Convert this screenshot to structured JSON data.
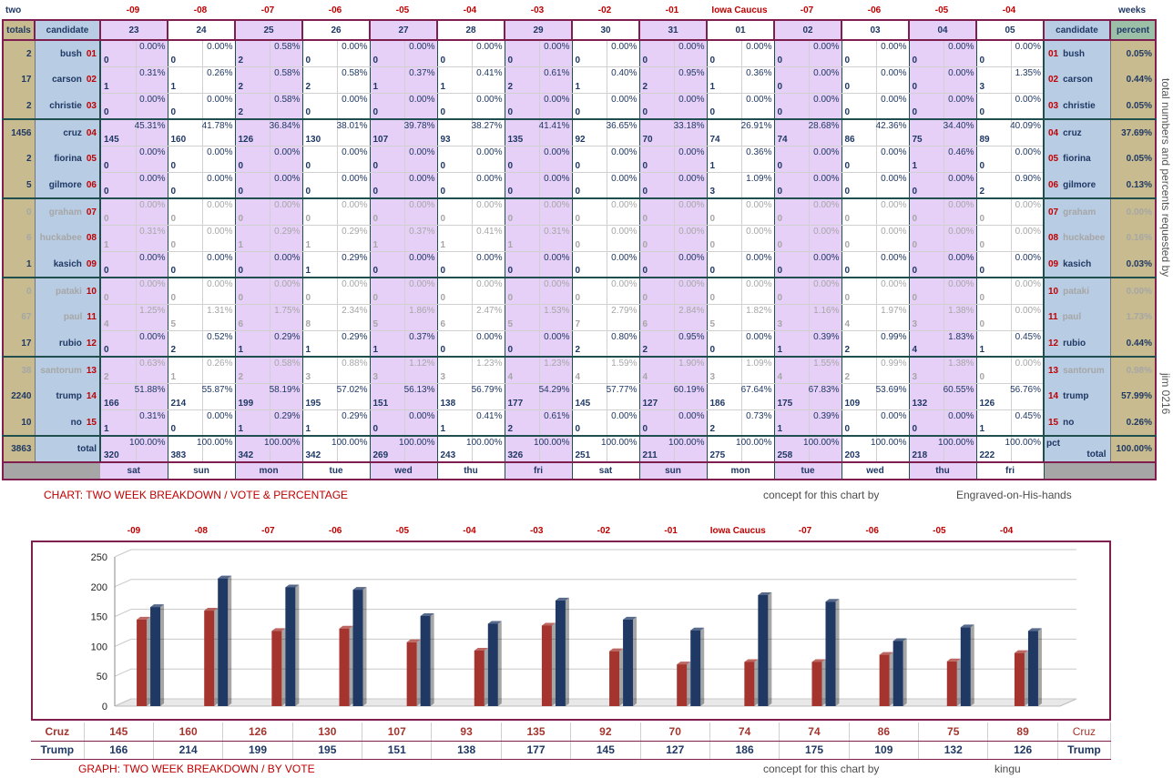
{
  "corner": {
    "left": "two",
    "right": "weeks"
  },
  "top_labels": [
    "-09",
    "-08",
    "-07",
    "-06",
    "-05",
    "-04",
    "-03",
    "-02",
    "-01",
    "Iowa Caucus",
    "-07",
    "-06",
    "-05",
    "-04"
  ],
  "header": {
    "totals": "totals",
    "candidate": "candidate",
    "percent": "percent"
  },
  "dates": [
    "23",
    "24",
    "25",
    "26",
    "27",
    "28",
    "29",
    "30",
    "31",
    "01",
    "02",
    "03",
    "04",
    "05"
  ],
  "weekdays": [
    "sat",
    "sun",
    "mon",
    "tue",
    "wed",
    "thu",
    "fri",
    "sat",
    "sun",
    "mon",
    "tue",
    "wed",
    "thu",
    "fri"
  ],
  "candidates": [
    {
      "id": "01",
      "name": "bush",
      "total": "2",
      "percent": "0.05%",
      "faded": false,
      "votes": [
        "0",
        "0",
        "2",
        "0",
        "0",
        "0",
        "0",
        "0",
        "0",
        "0",
        "0",
        "0",
        "0",
        "0"
      ],
      "pcts": [
        "0.00%",
        "0.00%",
        "0.58%",
        "0.00%",
        "0.00%",
        "0.00%",
        "0.00%",
        "0.00%",
        "0.00%",
        "0.00%",
        "0.00%",
        "0.00%",
        "0.00%",
        "0.00%"
      ]
    },
    {
      "id": "02",
      "name": "carson",
      "total": "17",
      "percent": "0.44%",
      "faded": false,
      "votes": [
        "1",
        "1",
        "2",
        "2",
        "1",
        "1",
        "2",
        "1",
        "2",
        "1",
        "0",
        "0",
        "0",
        "3"
      ],
      "pcts": [
        "0.31%",
        "0.26%",
        "0.58%",
        "0.58%",
        "0.37%",
        "0.41%",
        "0.61%",
        "0.40%",
        "0.95%",
        "0.36%",
        "0.00%",
        "0.00%",
        "0.00%",
        "1.35%"
      ]
    },
    {
      "id": "03",
      "name": "christie",
      "total": "2",
      "percent": "0.05%",
      "faded": false,
      "votes": [
        "0",
        "0",
        "2",
        "0",
        "0",
        "0",
        "0",
        "0",
        "0",
        "0",
        "0",
        "0",
        "0",
        "0"
      ],
      "pcts": [
        "0.00%",
        "0.00%",
        "0.58%",
        "0.00%",
        "0.00%",
        "0.00%",
        "0.00%",
        "0.00%",
        "0.00%",
        "0.00%",
        "0.00%",
        "0.00%",
        "0.00%",
        "0.00%"
      ]
    },
    {
      "id": "04",
      "name": "cruz",
      "total": "1456",
      "percent": "37.69%",
      "faded": false,
      "votes": [
        "145",
        "160",
        "126",
        "130",
        "107",
        "93",
        "135",
        "92",
        "70",
        "74",
        "74",
        "86",
        "75",
        "89"
      ],
      "pcts": [
        "45.31%",
        "41.78%",
        "36.84%",
        "38.01%",
        "39.78%",
        "38.27%",
        "41.41%",
        "36.65%",
        "33.18%",
        "26.91%",
        "28.68%",
        "42.36%",
        "34.40%",
        "40.09%"
      ]
    },
    {
      "id": "05",
      "name": "fiorina",
      "total": "2",
      "percent": "0.05%",
      "faded": false,
      "votes": [
        "0",
        "0",
        "0",
        "0",
        "0",
        "0",
        "0",
        "0",
        "0",
        "1",
        "0",
        "0",
        "1",
        "0"
      ],
      "pcts": [
        "0.00%",
        "0.00%",
        "0.00%",
        "0.00%",
        "0.00%",
        "0.00%",
        "0.00%",
        "0.00%",
        "0.00%",
        "0.36%",
        "0.00%",
        "0.00%",
        "0.46%",
        "0.00%"
      ]
    },
    {
      "id": "06",
      "name": "gilmore",
      "total": "5",
      "percent": "0.13%",
      "faded": false,
      "votes": [
        "0",
        "0",
        "0",
        "0",
        "0",
        "0",
        "0",
        "0",
        "0",
        "3",
        "0",
        "0",
        "0",
        "2"
      ],
      "pcts": [
        "0.00%",
        "0.00%",
        "0.00%",
        "0.00%",
        "0.00%",
        "0.00%",
        "0.00%",
        "0.00%",
        "0.00%",
        "1.09%",
        "0.00%",
        "0.00%",
        "0.00%",
        "0.90%"
      ]
    },
    {
      "id": "07",
      "name": "graham",
      "total": "0",
      "percent": "0.00%",
      "faded": true,
      "votes": [
        "0",
        "0",
        "0",
        "0",
        "0",
        "0",
        "0",
        "0",
        "0",
        "0",
        "0",
        "0",
        "0",
        "0"
      ],
      "pcts": [
        "0.00%",
        "0.00%",
        "0.00%",
        "0.00%",
        "0.00%",
        "0.00%",
        "0.00%",
        "0.00%",
        "0.00%",
        "0.00%",
        "0.00%",
        "0.00%",
        "0.00%",
        "0.00%"
      ]
    },
    {
      "id": "08",
      "name": "huckabee",
      "total": "6",
      "percent": "0.16%",
      "faded": true,
      "votes": [
        "1",
        "0",
        "1",
        "1",
        "1",
        "1",
        "1",
        "0",
        "0",
        "0",
        "0",
        "0",
        "0",
        "0"
      ],
      "pcts": [
        "0.31%",
        "0.00%",
        "0.29%",
        "0.29%",
        "0.37%",
        "0.41%",
        "0.31%",
        "0.00%",
        "0.00%",
        "0.00%",
        "0.00%",
        "0.00%",
        "0.00%",
        "0.00%"
      ]
    },
    {
      "id": "09",
      "name": "kasich",
      "total": "1",
      "percent": "0.03%",
      "faded": false,
      "votes": [
        "0",
        "0",
        "0",
        "1",
        "0",
        "0",
        "0",
        "0",
        "0",
        "0",
        "0",
        "0",
        "0",
        "0"
      ],
      "pcts": [
        "0.00%",
        "0.00%",
        "0.00%",
        "0.29%",
        "0.00%",
        "0.00%",
        "0.00%",
        "0.00%",
        "0.00%",
        "0.00%",
        "0.00%",
        "0.00%",
        "0.00%",
        "0.00%"
      ]
    },
    {
      "id": "10",
      "name": "pataki",
      "total": "0",
      "percent": "0.00%",
      "faded": true,
      "votes": [
        "0",
        "0",
        "0",
        "0",
        "0",
        "0",
        "0",
        "0",
        "0",
        "0",
        "0",
        "0",
        "0",
        "0"
      ],
      "pcts": [
        "0.00%",
        "0.00%",
        "0.00%",
        "0.00%",
        "0.00%",
        "0.00%",
        "0.00%",
        "0.00%",
        "0.00%",
        "0.00%",
        "0.00%",
        "0.00%",
        "0.00%",
        "0.00%"
      ]
    },
    {
      "id": "11",
      "name": "paul",
      "total": "67",
      "percent": "1.73%",
      "faded": true,
      "votes": [
        "4",
        "5",
        "6",
        "8",
        "5",
        "6",
        "5",
        "7",
        "6",
        "5",
        "3",
        "4",
        "3",
        "0"
      ],
      "pcts": [
        "1.25%",
        "1.31%",
        "1.75%",
        "2.34%",
        "1.86%",
        "2.47%",
        "1.53%",
        "2.79%",
        "2.84%",
        "1.82%",
        "1.16%",
        "1.97%",
        "1.38%",
        "0.00%"
      ]
    },
    {
      "id": "12",
      "name": "rubio",
      "total": "17",
      "percent": "0.44%",
      "faded": false,
      "votes": [
        "0",
        "2",
        "1",
        "1",
        "1",
        "0",
        "0",
        "2",
        "2",
        "0",
        "1",
        "2",
        "4",
        "1"
      ],
      "pcts": [
        "0.00%",
        "0.52%",
        "0.29%",
        "0.29%",
        "0.37%",
        "0.00%",
        "0.00%",
        "0.80%",
        "0.95%",
        "0.00%",
        "0.39%",
        "0.99%",
        "1.83%",
        "0.45%"
      ]
    },
    {
      "id": "13",
      "name": "santorum",
      "total": "38",
      "percent": "0.98%",
      "faded": true,
      "votes": [
        "2",
        "1",
        "2",
        "3",
        "3",
        "3",
        "4",
        "4",
        "4",
        "3",
        "4",
        "2",
        "3",
        "0"
      ],
      "pcts": [
        "0.63%",
        "0.26%",
        "0.58%",
        "0.88%",
        "1.12%",
        "1.23%",
        "1.23%",
        "1.59%",
        "1.90%",
        "1.09%",
        "1.55%",
        "0.99%",
        "1.38%",
        "0.00%"
      ]
    },
    {
      "id": "14",
      "name": "trump",
      "total": "2240",
      "percent": "57.99%",
      "faded": false,
      "votes": [
        "166",
        "214",
        "199",
        "195",
        "151",
        "138",
        "177",
        "145",
        "127",
        "186",
        "175",
        "109",
        "132",
        "126"
      ],
      "pcts": [
        "51.88%",
        "55.87%",
        "58.19%",
        "57.02%",
        "56.13%",
        "56.79%",
        "54.29%",
        "57.77%",
        "60.19%",
        "67.64%",
        "67.83%",
        "53.69%",
        "60.55%",
        "56.76%"
      ]
    },
    {
      "id": "15",
      "name": "no",
      "total": "10",
      "percent": "0.26%",
      "faded": false,
      "votes": [
        "1",
        "0",
        "1",
        "1",
        "0",
        "1",
        "2",
        "0",
        "0",
        "2",
        "1",
        "0",
        "0",
        "1"
      ],
      "pcts": [
        "0.31%",
        "0.00%",
        "0.29%",
        "0.29%",
        "0.00%",
        "0.41%",
        "0.61%",
        "0.00%",
        "0.00%",
        "0.73%",
        "0.39%",
        "0.00%",
        "0.00%",
        "0.45%"
      ]
    }
  ],
  "total_row": {
    "total": "3863",
    "label": "total",
    "pct_label": "pct",
    "percent": "100.00%",
    "votes": [
      "320",
      "383",
      "342",
      "342",
      "269",
      "243",
      "326",
      "251",
      "211",
      "275",
      "258",
      "203",
      "218",
      "222"
    ],
    "pcts": [
      "100.00%",
      "100.00%",
      "100.00%",
      "100.00%",
      "100.00%",
      "100.00%",
      "100.00%",
      "100.00%",
      "100.00%",
      "100.00%",
      "100.00%",
      "100.00%",
      "100.00%",
      "100.00%"
    ]
  },
  "side_notes": {
    "vertical": "total numbers and percents requested by",
    "name": "jim 0216"
  },
  "captions": {
    "table_title": "CHART: TWO WEEK BREAKDOWN / VOTE & PERCENTAGE",
    "table_concept": "concept for this chart by",
    "table_author": "Engraved-on-His-hands",
    "graph_title": "GRAPH: TWO WEEK BREAKDOWN / BY VOTE",
    "graph_concept": "concept for this chart by",
    "graph_author": "kingu"
  },
  "colors": {
    "cruz": "#a5342e",
    "trump": "#1f3864",
    "border": "#7f1f4f",
    "lilac": "#e6d0f7",
    "candidate_bg": "#b8cce4",
    "totals_bg": "#c7bb8f"
  },
  "chart_data": {
    "type": "bar",
    "categories": [
      "-09",
      "-08",
      "-07",
      "-06",
      "-05",
      "-04",
      "-03",
      "-02",
      "-01",
      "Iowa Caucus",
      "-07",
      "-06",
      "-05",
      "-04"
    ],
    "series": [
      {
        "name": "Cruz",
        "values": [
          145,
          160,
          126,
          130,
          107,
          93,
          135,
          92,
          70,
          74,
          74,
          86,
          75,
          89
        ],
        "color": "#a5342e"
      },
      {
        "name": "Trump",
        "values": [
          166,
          214,
          199,
          195,
          151,
          138,
          177,
          145,
          127,
          186,
          175,
          109,
          132,
          126
        ],
        "color": "#1f3864"
      }
    ],
    "yticks": [
      0,
      50,
      100,
      150,
      200,
      250
    ],
    "ylim": [
      0,
      250
    ],
    "grid": true
  }
}
